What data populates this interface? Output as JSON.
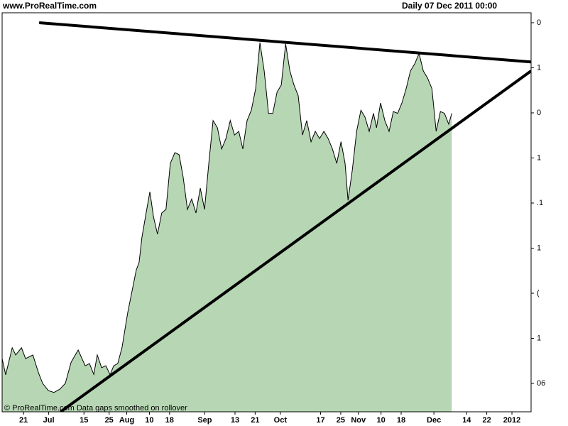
{
  "chart_data": {
    "type": "area",
    "title": "www.ProRealTime.com",
    "subtitle": "Daily  07 Dec 2011 00:00",
    "footer": "© ProRealTime.com Data gaps smoothed on rollover",
    "color": "#b7d7b4",
    "line_color": "#000000",
    "x": [
      12.5,
      13.9,
      16.5,
      17.9,
      20.2,
      21.8,
      24.7,
      26.9,
      28.6,
      30.9,
      33.1,
      35.4,
      37.6,
      39.9,
      42.7,
      45.5,
      47.2,
      48.9,
      50.3,
      52.0,
      53.7,
      55.4,
      56.8,
      58.4,
      60.1,
      62.4,
      64.1,
      65.8,
      66.9,
      68.0,
      69.7,
      71.2,
      72.6,
      74.2,
      75.9,
      77.6,
      79.3,
      81.1,
      82.8,
      84.4,
      86.1,
      87.8,
      89.5,
      91.2,
      92.9,
      94.6,
      96.3,
      98.0,
      99.7,
      101.4,
      103.1,
      104.8,
      106.5,
      108.1,
      109.8,
      111.5,
      113.2,
      114.9,
      116.6,
      118.3,
      120.0,
      121.7,
      123.4,
      125.1,
      126.8,
      128.4,
      130.1,
      131.8,
      133.5,
      135.2,
      136.9,
      138.6,
      140.3,
      142.0,
      143.7,
      145.4,
      147.1,
      148.7,
      149.9,
      151.6,
      153.3,
      155.0,
      156.6,
      158.3,
      160.0,
      161.2,
      162.8,
      164.5,
      166.2,
      167.9,
      169.6,
      171.3,
      173.0,
      174.7,
      176.4,
      178.1,
      179.8,
      181.5,
      183.2,
      184.9,
      186.6,
      188.2,
      189.9,
      191.1
    ],
    "values": [
      0.55,
      0.19,
      0.79,
      0.63,
      0.79,
      0.55,
      0.63,
      0.24,
      0,
      -0.16,
      -0.2,
      -0.13,
      0,
      0.47,
      0.74,
      0.39,
      0.44,
      0.2,
      0.63,
      0.35,
      0.39,
      0.19,
      0.39,
      0.44,
      0.79,
      1.57,
      2.05,
      2.52,
      2.68,
      3.23,
      3.78,
      4.25,
      3.7,
      3.31,
      3.78,
      3.86,
      4.88,
      5.12,
      5.07,
      4.57,
      3.86,
      4.09,
      3.78,
      4.33,
      3.86,
      4.88,
      5.83,
      5.67,
      5.2,
      5.43,
      5.83,
      5.51,
      5.59,
      5.2,
      5.83,
      6.06,
      6.54,
      7.56,
      6.93,
      5.99,
      5.99,
      6.46,
      6.62,
      7.53,
      6.93,
      6.62,
      6.38,
      5.51,
      5.83,
      5.36,
      5.59,
      5.43,
      5.59,
      5.43,
      5.2,
      4.88,
      5.36,
      4.88,
      4.06,
      4.73,
      5.59,
      6.06,
      5.91,
      5.59,
      5.99,
      5.67,
      6.22,
      5.83,
      5.59,
      6.03,
      5.99,
      6.22,
      6.54,
      6.93,
      7.09,
      7.32,
      6.93,
      6.77,
      6.54,
      5.59,
      6.03,
      5.99,
      5.75,
      5.99
    ],
    "trendlines": [
      {
        "x": [
          27.2,
          222.6
        ],
        "values": [
          8.0,
          7.13
        ]
      },
      {
        "x": [
          35.7,
          222.6
        ],
        "values": [
          -0.63,
          6.93
        ]
      }
    ],
    "xlim": [
      12.5,
      222.6
    ],
    "xticks": [
      {
        "value": 21,
        "label": "21"
      },
      {
        "value": 31,
        "label": "Jul"
      },
      {
        "value": 45,
        "label": "15"
      },
      {
        "value": 55,
        "label": "25"
      },
      {
        "value": 62,
        "label": "Aug"
      },
      {
        "value": 71,
        "label": "10"
      },
      {
        "value": 79,
        "label": "18"
      },
      {
        "value": 93,
        "label": "Sep"
      },
      {
        "value": 105,
        "label": "13"
      },
      {
        "value": 113,
        "label": "21"
      },
      {
        "value": 123,
        "label": "Oct"
      },
      {
        "value": 139,
        "label": "17"
      },
      {
        "value": 147,
        "label": "25"
      },
      {
        "value": 154,
        "label": "Nov"
      },
      {
        "value": 163,
        "label": "10"
      },
      {
        "value": 171,
        "label": "18"
      },
      {
        "value": 184,
        "label": "Dec"
      },
      {
        "value": 197,
        "label": "14"
      },
      {
        "value": 205,
        "label": "22"
      },
      {
        "value": 215,
        "label": "2012"
      }
    ],
    "ylim": [
      -0.63,
      8.22
    ],
    "yticks": [
      {
        "value": 8,
        "label": "0"
      },
      {
        "value": 7,
        "label": "1"
      },
      {
        "value": 6,
        "label": "0"
      },
      {
        "value": 5,
        "label": "1"
      },
      {
        "value": 4,
        "label": ".1"
      },
      {
        "value": 3,
        "label": "1"
      },
      {
        "value": 2,
        "label": "("
      },
      {
        "value": 1,
        "label": "1"
      },
      {
        "value": 0,
        "label": "06"
      }
    ]
  }
}
